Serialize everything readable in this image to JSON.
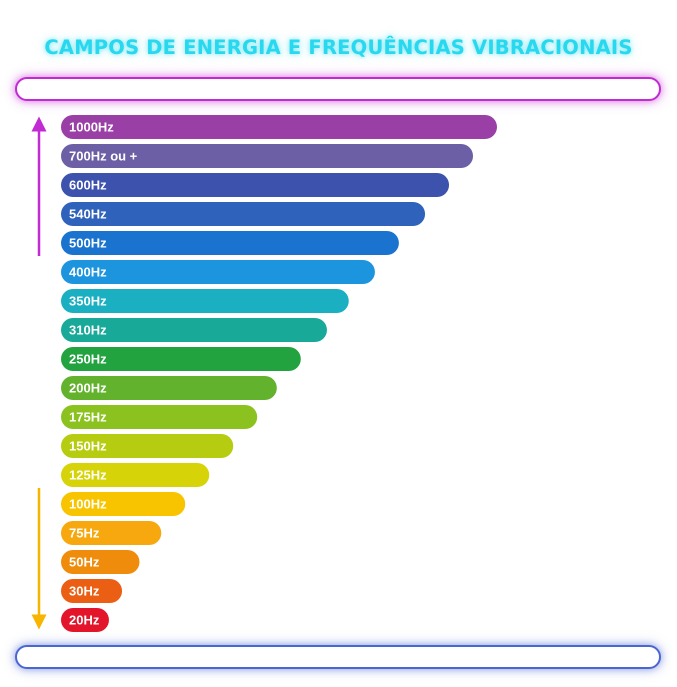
{
  "title": "CAMPOS DE ENERGIA E FREQUÊNCIAS VIBRACIONAIS",
  "colors": {
    "title": "#27d8ee",
    "arrow_up": "#c22ad4",
    "arrow_down": "#f7b500",
    "frame_top": "#c22ad4",
    "frame_bottom": "#4a66d2"
  },
  "chart_data": {
    "type": "bar",
    "orientation": "horizontal",
    "categories": [
      "1000Hz",
      "700Hz ou +",
      "600Hz",
      "540Hz",
      "500Hz",
      "400Hz",
      "350Hz",
      "310Hz",
      "250Hz",
      "200Hz",
      "175Hz",
      "150Hz",
      "125Hz",
      "100Hz",
      "75Hz",
      "50Hz",
      "30Hz",
      "20Hz"
    ],
    "values": [
      100,
      94.5,
      89,
      83.5,
      77.5,
      72,
      66,
      61,
      55,
      49.5,
      45,
      39.5,
      34,
      28.5,
      23,
      18,
      14,
      11
    ],
    "colors": [
      "#9a3fa6",
      "#6c5fa6",
      "#3c52ad",
      "#2f62bb",
      "#1a74cf",
      "#1d95de",
      "#1ab0c2",
      "#19a999",
      "#22a33f",
      "#62b22d",
      "#8cc220",
      "#b6cc10",
      "#d6d408",
      "#f8c400",
      "#f6a80e",
      "#f08c0c",
      "#ea5f13",
      "#e3152b"
    ],
    "xlim": [
      0,
      100
    ],
    "grid": false,
    "legend": "none"
  }
}
